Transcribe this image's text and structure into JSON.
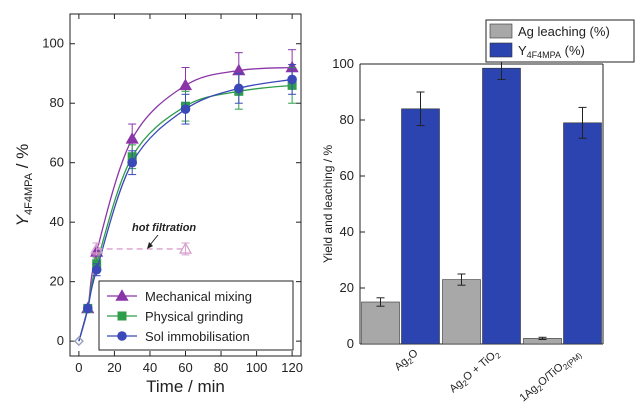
{
  "chart_data": [
    {
      "type": "line",
      "title": "",
      "xlabel": "Time / min",
      "ylabel_main": "Y",
      "ylabel_sub": "4F4MPA",
      "ylabel_unit": " / %",
      "xlim": [
        -5,
        125
      ],
      "ylim": [
        -5,
        110
      ],
      "xticks": [
        0,
        20,
        40,
        60,
        80,
        100,
        120
      ],
      "yticks": [
        0,
        20,
        40,
        60,
        80,
        100
      ],
      "grid": false,
      "legend_position": "bottom-right",
      "annotation": "hot filtration",
      "series": [
        {
          "name": "Mechanical mixing",
          "marker": "triangle",
          "color": "#8a35a8",
          "x": [
            0,
            5,
            10,
            30,
            60,
            90,
            120
          ],
          "y": [
            0,
            11,
            30,
            68,
            86,
            91,
            92
          ],
          "err": [
            0,
            1,
            3,
            5,
            6,
            6,
            6
          ]
        },
        {
          "name": "Physical grinding",
          "marker": "square",
          "color": "#2e9e4a",
          "x": [
            0,
            5,
            10,
            30,
            60,
            90,
            120
          ],
          "y": [
            0,
            11,
            26,
            62,
            79,
            84,
            86
          ],
          "err": [
            0,
            1,
            2,
            4,
            5,
            6,
            6
          ]
        },
        {
          "name": "Sol immobilisation",
          "marker": "circle",
          "color": "#3a48b8",
          "x": [
            0,
            5,
            10,
            30,
            60,
            90,
            120
          ],
          "y": [
            0,
            11,
            24,
            60,
            78,
            85,
            88
          ],
          "err": [
            0,
            1,
            2,
            4,
            5,
            5,
            5
          ]
        },
        {
          "name": "",
          "marker": "triangle-open",
          "color": "#d8a0cf",
          "dashed": true,
          "x": [
            10,
            60
          ],
          "y": [
            31,
            31
          ],
          "err": [
            2,
            2
          ]
        }
      ]
    },
    {
      "type": "bar",
      "title": "",
      "xlabel": "",
      "ylabel": "Yield and leaching / %",
      "ylim": [
        0,
        100
      ],
      "yticks": [
        0,
        20,
        40,
        60,
        80,
        100
      ],
      "grid": false,
      "legend_position": "top-right",
      "categories": [
        {
          "main": "Ag",
          "sub": "2",
          "rest": "O",
          "sub2": "",
          "rest2": ""
        },
        {
          "main": "Ag",
          "sub": "2",
          "rest": "O + TiO",
          "sub2": "2",
          "rest2": ""
        },
        {
          "main": "1Ag",
          "sub": "2",
          "rest": "O/TiO",
          "sub2": "2(PM)",
          "rest2": ""
        }
      ],
      "series": [
        {
          "name": "Ag leaching (%)",
          "color": "#a8a8a8",
          "values": [
            15,
            23,
            2
          ],
          "err": [
            1.5,
            2,
            0.4
          ]
        },
        {
          "name_main": "Y",
          "name_sub": "4F4MPA",
          "name_rest": " (%)",
          "color": "#2b44b0",
          "values": [
            84,
            98.5,
            79
          ],
          "err": [
            6,
            4,
            5.5
          ]
        }
      ]
    }
  ]
}
